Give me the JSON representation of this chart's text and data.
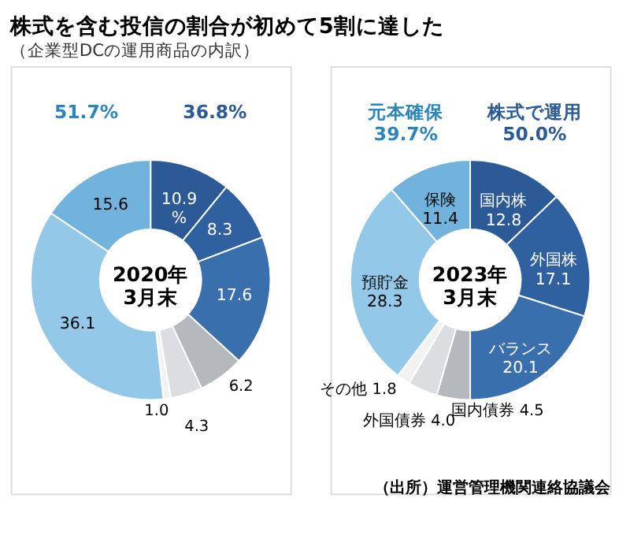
{
  "chart_data": [
    {
      "type": "donut",
      "title": "株式を含む投信の割合が初めて5割に達した",
      "subtitle": "（企業型DCの運用商品の内訳）",
      "categories": [
        null,
        null,
        null,
        null,
        null,
        null,
        null,
        null
      ],
      "values": [
        10.9,
        8.3,
        17.6,
        6.2,
        4.3,
        1.0,
        36.1,
        15.6
      ],
      "value_labels": [
        "10.9\n%",
        "8.3",
        "17.6",
        "6.2",
        "4.3",
        "1.0",
        "36.1",
        "15.6"
      ],
      "colors": [
        "#2b5a96",
        "#2f61a1",
        "#3a6fae",
        "#b5b8bd",
        "#dcdde0",
        "#f2f2f2",
        "#94c8e8",
        "#71b3dd"
      ],
      "annotations": [
        "2020年\n3月末",
        "51.7%",
        "36.8%"
      ]
    },
    {
      "type": "donut",
      "categories": [
        "国内株",
        "外国株",
        "バランス",
        "国内債券",
        "外国債券",
        "その他",
        "預貯金",
        "保険"
      ],
      "values": [
        12.8,
        17.1,
        20.1,
        4.5,
        4.0,
        1.8,
        28.3,
        11.4
      ],
      "value_labels": [
        "12.8",
        "17.1",
        "20.1",
        "4.5",
        "4.0",
        "1.8",
        "28.3",
        "11.4"
      ],
      "colors": [
        "#2b5a96",
        "#2f61a1",
        "#3a6fae",
        "#b5b8bd",
        "#dcdde0",
        "#f2f2f2",
        "#94c8e8",
        "#71b3dd"
      ],
      "annotations": [
        "2023年\n3月末",
        "元本確保\n39.7%",
        "株式で運用\n50.0%",
        "（出所）運営管理機関連絡協議会"
      ]
    }
  ]
}
